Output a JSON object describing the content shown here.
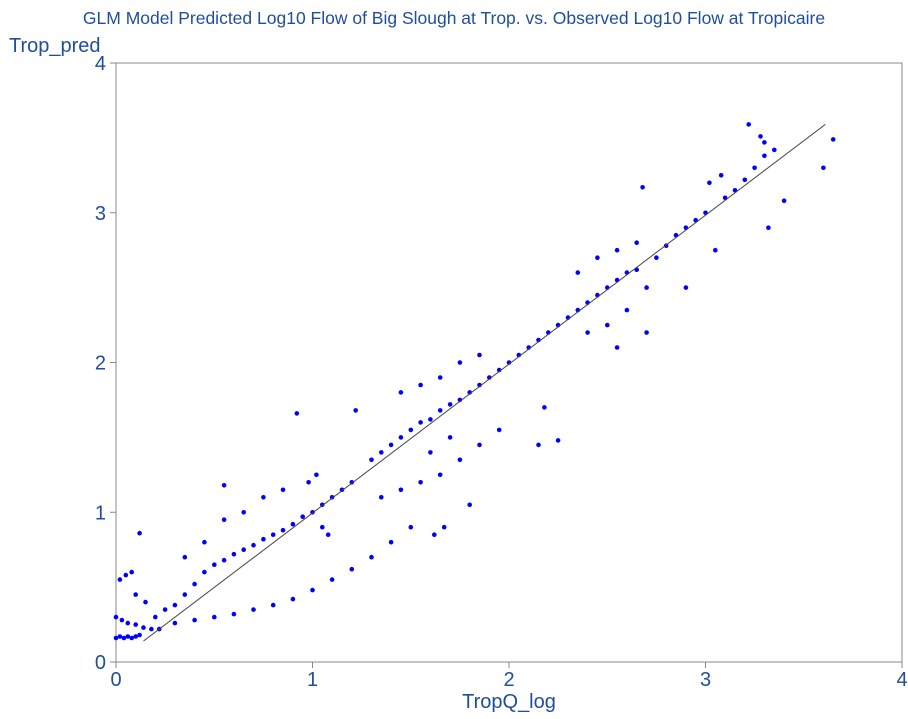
{
  "chart_data": {
    "type": "scatter",
    "title": "GLM Model Predicted Log10 Flow of Big Slough at Trop. vs. Observed Log10 Flow at Tropicaire",
    "xlabel": "TropQ_log",
    "ylabel": "Trop_pred",
    "xlim": [
      0,
      4
    ],
    "ylim": [
      0,
      4
    ],
    "xticks": [
      "0",
      "1",
      "2",
      "3",
      "4"
    ],
    "yticks": [
      "0",
      "1",
      "2",
      "3",
      "4"
    ],
    "grid": false,
    "legend": "none",
    "series": [
      {
        "marker_color": "#0000ff",
        "points": [
          [
            0.0,
            0.16
          ],
          [
            0.02,
            0.17
          ],
          [
            0.04,
            0.16
          ],
          [
            0.06,
            0.17
          ],
          [
            0.08,
            0.16
          ],
          [
            0.1,
            0.17
          ],
          [
            0.12,
            0.18
          ],
          [
            0.0,
            0.3
          ],
          [
            0.03,
            0.28
          ],
          [
            0.06,
            0.26
          ],
          [
            0.1,
            0.25
          ],
          [
            0.14,
            0.23
          ],
          [
            0.18,
            0.22
          ],
          [
            0.22,
            0.22
          ],
          [
            0.02,
            0.55
          ],
          [
            0.05,
            0.58
          ],
          [
            0.08,
            0.6
          ],
          [
            0.12,
            0.86
          ],
          [
            0.1,
            0.45
          ],
          [
            0.15,
            0.4
          ],
          [
            0.2,
            0.3
          ],
          [
            0.25,
            0.35
          ],
          [
            0.3,
            0.38
          ],
          [
            0.35,
            0.45
          ],
          [
            0.4,
            0.52
          ],
          [
            0.45,
            0.6
          ],
          [
            0.5,
            0.65
          ],
          [
            0.55,
            0.68
          ],
          [
            0.6,
            0.72
          ],
          [
            0.65,
            0.75
          ],
          [
            0.7,
            0.78
          ],
          [
            0.75,
            0.82
          ],
          [
            0.8,
            0.85
          ],
          [
            0.85,
            0.88
          ],
          [
            0.9,
            0.92
          ],
          [
            0.95,
            0.97
          ],
          [
            1.0,
            1.0
          ],
          [
            1.05,
            1.05
          ],
          [
            1.1,
            1.1
          ],
          [
            1.15,
            1.15
          ],
          [
            1.2,
            1.2
          ],
          [
            0.3,
            0.26
          ],
          [
            0.4,
            0.28
          ],
          [
            0.5,
            0.3
          ],
          [
            0.6,
            0.32
          ],
          [
            0.7,
            0.35
          ],
          [
            0.8,
            0.38
          ],
          [
            0.9,
            0.42
          ],
          [
            1.0,
            0.48
          ],
          [
            1.1,
            0.55
          ],
          [
            1.2,
            0.62
          ],
          [
            1.3,
            0.7
          ],
          [
            1.4,
            0.8
          ],
          [
            1.5,
            0.9
          ],
          [
            0.35,
            0.7
          ],
          [
            0.45,
            0.8
          ],
          [
            0.55,
            0.95
          ],
          [
            0.65,
            1.0
          ],
          [
            0.75,
            1.1
          ],
          [
            0.85,
            1.15
          ],
          [
            0.55,
            1.18
          ],
          [
            0.92,
            1.66
          ],
          [
            1.22,
            1.68
          ],
          [
            0.98,
            1.2
          ],
          [
            1.02,
            1.25
          ],
          [
            1.05,
            0.9
          ],
          [
            1.08,
            0.85
          ],
          [
            1.3,
            1.35
          ],
          [
            1.35,
            1.4
          ],
          [
            1.4,
            1.45
          ],
          [
            1.45,
            1.5
          ],
          [
            1.5,
            1.55
          ],
          [
            1.55,
            1.6
          ],
          [
            1.6,
            1.62
          ],
          [
            1.65,
            1.68
          ],
          [
            1.7,
            1.72
          ],
          [
            1.75,
            1.75
          ],
          [
            1.8,
            1.8
          ],
          [
            1.85,
            1.85
          ],
          [
            1.9,
            1.9
          ],
          [
            1.95,
            1.95
          ],
          [
            2.0,
            2.0
          ],
          [
            2.05,
            2.05
          ],
          [
            2.1,
            2.1
          ],
          [
            2.15,
            2.15
          ],
          [
            2.2,
            2.2
          ],
          [
            2.25,
            2.25
          ],
          [
            2.3,
            2.3
          ],
          [
            1.35,
            1.1
          ],
          [
            1.45,
            1.15
          ],
          [
            1.55,
            1.2
          ],
          [
            1.65,
            1.25
          ],
          [
            1.75,
            1.35
          ],
          [
            1.85,
            1.45
          ],
          [
            1.95,
            1.55
          ],
          [
            1.45,
            1.8
          ],
          [
            1.55,
            1.85
          ],
          [
            1.65,
            1.9
          ],
          [
            1.75,
            2.0
          ],
          [
            1.85,
            2.05
          ],
          [
            1.6,
            1.4
          ],
          [
            1.7,
            1.5
          ],
          [
            1.62,
            0.85
          ],
          [
            1.67,
            0.9
          ],
          [
            1.8,
            1.05
          ],
          [
            2.15,
            1.45
          ],
          [
            2.25,
            1.48
          ],
          [
            2.18,
            1.7
          ],
          [
            2.35,
            2.35
          ],
          [
            2.4,
            2.4
          ],
          [
            2.45,
            2.45
          ],
          [
            2.5,
            2.5
          ],
          [
            2.55,
            2.55
          ],
          [
            2.6,
            2.6
          ],
          [
            2.65,
            2.62
          ],
          [
            2.35,
            2.6
          ],
          [
            2.45,
            2.7
          ],
          [
            2.55,
            2.75
          ],
          [
            2.65,
            2.8
          ],
          [
            2.4,
            2.2
          ],
          [
            2.5,
            2.25
          ],
          [
            2.6,
            2.35
          ],
          [
            2.7,
            2.5
          ],
          [
            2.75,
            2.7
          ],
          [
            2.8,
            2.78
          ],
          [
            2.85,
            2.85
          ],
          [
            2.9,
            2.9
          ],
          [
            2.95,
            2.95
          ],
          [
            3.0,
            3.0
          ],
          [
            2.68,
            3.17
          ],
          [
            2.55,
            2.1
          ],
          [
            2.7,
            2.2
          ],
          [
            2.9,
            2.5
          ],
          [
            3.05,
            2.75
          ],
          [
            3.02,
            3.2
          ],
          [
            3.08,
            3.25
          ],
          [
            3.1,
            3.1
          ],
          [
            3.15,
            3.15
          ],
          [
            3.2,
            3.22
          ],
          [
            3.25,
            3.3
          ],
          [
            3.3,
            3.38
          ],
          [
            3.35,
            3.42
          ],
          [
            3.22,
            3.59
          ],
          [
            3.28,
            3.51
          ],
          [
            3.3,
            3.47
          ],
          [
            3.4,
            3.08
          ],
          [
            3.32,
            2.9
          ],
          [
            3.6,
            3.3
          ],
          [
            3.65,
            3.49
          ]
        ]
      }
    ],
    "fit_line": {
      "x": [
        0.14,
        3.61
      ],
      "y": [
        0.14,
        3.59
      ]
    }
  }
}
